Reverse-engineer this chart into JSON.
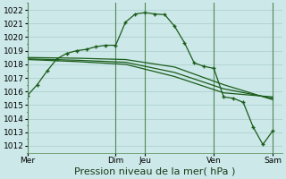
{
  "background_color": "#cce8e8",
  "grid_color": "#aacccc",
  "line_color": "#1a5c1a",
  "ylim": [
    1011.5,
    1022.5
  ],
  "yticks": [
    1012,
    1013,
    1014,
    1015,
    1016,
    1017,
    1018,
    1019,
    1020,
    1021,
    1022
  ],
  "xlabel": "Pression niveau de la mer( hPa )",
  "xlabel_fontsize": 8,
  "tick_fontsize": 6.5,
  "xtick_labels": [
    "Mer",
    "Dim",
    "Jeu",
    "Ven",
    "Sam"
  ],
  "xtick_positions": [
    0,
    9,
    12,
    19,
    25
  ],
  "xlim": [
    0,
    26
  ],
  "vline_color": "#558855",
  "vlines": [
    0,
    9,
    12,
    19,
    25
  ],
  "line1_x": [
    0,
    1,
    2,
    3,
    4,
    5,
    6,
    7,
    8,
    9,
    10,
    11,
    12,
    13,
    14,
    15,
    16,
    17,
    18,
    19,
    20,
    21,
    22,
    23,
    24,
    25
  ],
  "line1_y": [
    1015.7,
    1016.5,
    1017.5,
    1018.4,
    1018.8,
    1019.0,
    1019.1,
    1019.3,
    1019.4,
    1019.4,
    1021.1,
    1021.7,
    1021.8,
    1021.7,
    1021.65,
    1020.8,
    1019.6,
    1018.1,
    1017.85,
    1017.7,
    1015.6,
    1015.5,
    1015.2,
    1013.4,
    1012.1,
    1013.1
  ],
  "line1_markers_x": [
    0,
    2,
    4,
    6,
    8,
    9,
    10,
    11,
    12,
    13,
    14,
    15,
    17,
    19,
    20,
    21,
    23,
    24,
    25
  ],
  "line2_x": [
    0,
    5,
    10,
    15,
    20,
    25
  ],
  "line2_y": [
    1018.5,
    1018.45,
    1018.35,
    1017.8,
    1016.5,
    1015.4
  ],
  "line3_x": [
    0,
    5,
    10,
    15,
    20,
    25
  ],
  "line3_y": [
    1018.4,
    1018.3,
    1018.15,
    1017.4,
    1016.2,
    1015.5
  ],
  "line4_x": [
    0,
    5,
    10,
    15,
    20,
    25
  ],
  "line4_y": [
    1018.35,
    1018.2,
    1018.0,
    1017.1,
    1015.9,
    1015.6
  ],
  "n_points": 26
}
